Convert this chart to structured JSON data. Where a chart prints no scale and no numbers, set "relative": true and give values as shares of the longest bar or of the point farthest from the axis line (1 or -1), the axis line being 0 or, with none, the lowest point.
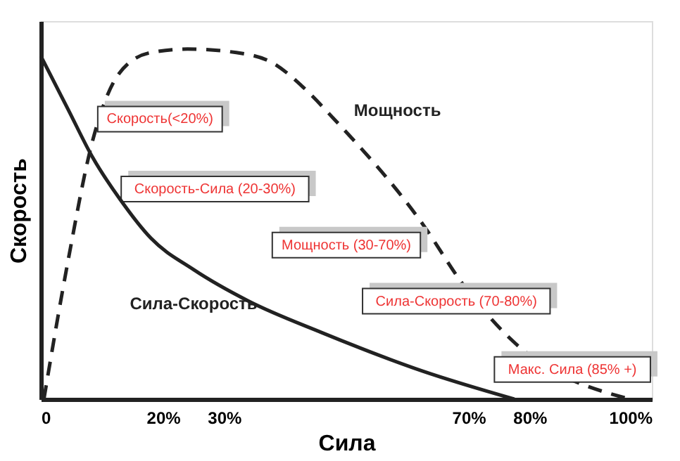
{
  "chart_data": {
    "type": "line",
    "relative": true,
    "xlabel": "Сила",
    "ylabel": "Скорость",
    "xlim": [
      0,
      100
    ],
    "xticks": [
      0,
      {
        "value": 20,
        "label": "20%"
      },
      {
        "value": 30,
        "label": "30%"
      },
      {
        "value": 70,
        "label": "70%"
      },
      {
        "value": 80,
        "label": "80%"
      },
      {
        "value": 100,
        "label": "100%"
      }
    ],
    "grid": false,
    "marker": "none",
    "series": [
      {
        "name": "Мощность",
        "color": "#222222",
        "line_style": "dashed",
        "x": [
          0.5,
          4.4,
          8.5,
          12.8,
          18,
          24,
          32,
          38,
          43,
          48,
          62.5,
          69,
          77,
          96.4
        ],
        "values": [
          0,
          0.39,
          0.74,
          0.93,
          0.99,
          1.0,
          0.99,
          0.96,
          0.89,
          0.8,
          0.5,
          0.33,
          0.17,
          0
        ]
      },
      {
        "name": "Сила-Скорость",
        "color": "#222222",
        "line_style": "solid",
        "x": [
          0,
          4.4,
          8.5,
          13,
          18,
          25,
          34,
          46,
          62.5,
          77.5
        ],
        "values": [
          0.98,
          0.83,
          0.69,
          0.57,
          0.46,
          0.37,
          0.28,
          0.19,
          0.08,
          0
        ]
      }
    ],
    "annotations": [
      "Скорость(<20%)",
      "Скорость-Сила (20-30%)",
      "Мощность (30-70%)",
      "Сила-Скорость (70-80%)",
      "Макс. Сила (85% +)"
    ]
  }
}
